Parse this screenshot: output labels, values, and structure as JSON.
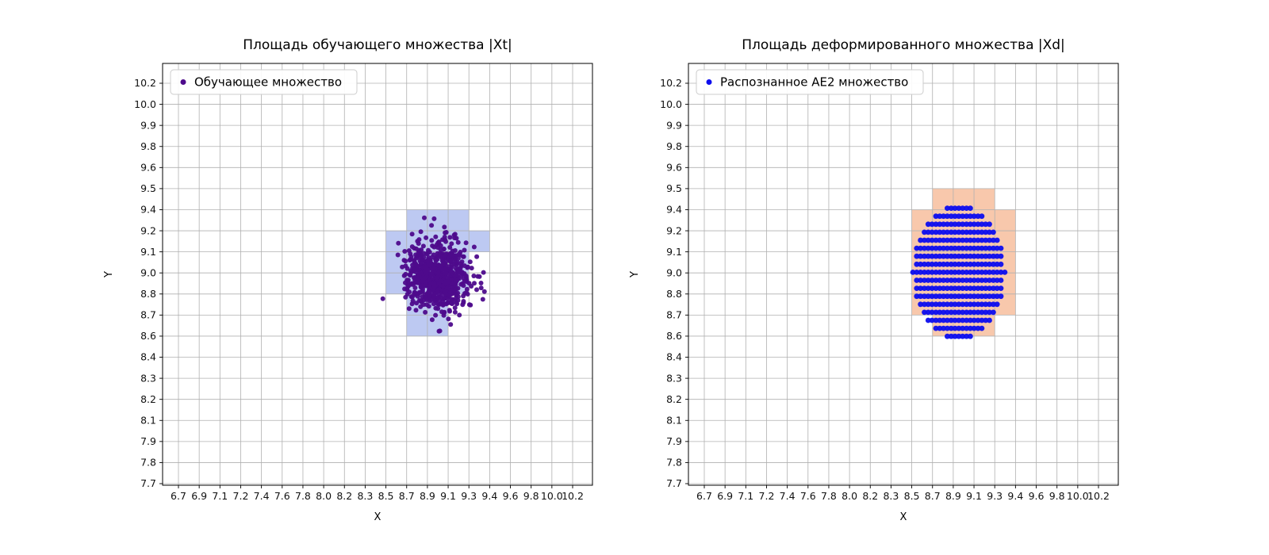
{
  "figure": {
    "background": "#ffffff"
  },
  "chart_data": [
    {
      "type": "scatter",
      "title": "Площадь обучающего множества |Xt|",
      "xlabel": "X",
      "ylabel": "Y",
      "grid": true,
      "legend_position": "upper left",
      "grid_color": "#b0b0b0",
      "axis_color": "#000000",
      "x_ticks": [
        "6.7",
        "6.9",
        "7.1",
        "7.2",
        "7.4",
        "7.6",
        "7.8",
        "8.0",
        "8.2",
        "8.3",
        "8.5",
        "8.7",
        "8.9",
        "9.1",
        "9.3",
        "9.4",
        "9.6",
        "9.8",
        "10.0",
        "10.2"
      ],
      "y_ticks": [
        "7.7",
        "7.8",
        "7.9",
        "8.1",
        "8.2",
        "8.3",
        "8.4",
        "8.6",
        "8.7",
        "8.8",
        "9.0",
        "9.1",
        "9.2",
        "9.4",
        "9.5",
        "9.6",
        "9.8",
        "9.9",
        "10.0",
        "10.2"
      ],
      "xlim": [
        6.7,
        10.2
      ],
      "ylim": [
        7.7,
        10.2
      ],
      "series": [
        {
          "name": "Обучающее множество",
          "color": "#4e0b8c",
          "marker": "circle",
          "marker_radius_px": 3,
          "points_spec": {
            "kind": "gaussian_cluster",
            "center": [
              9.0,
              9.0
            ],
            "std": [
              0.135,
              0.11
            ],
            "count": 700,
            "seed": 7
          }
        }
      ],
      "highlighted_cells": {
        "color": "#bdc9f2",
        "rects": [
          [
            8.7,
            9.3,
            9.2,
            9.4
          ],
          [
            8.5,
            9.3,
            8.8,
            9.2
          ],
          [
            9.3,
            9.4,
            9.1,
            9.2
          ],
          [
            8.7,
            9.1,
            8.6,
            8.8
          ]
        ]
      }
    },
    {
      "type": "scatter",
      "title": "Площадь деформированного множества |Xd|",
      "xlabel": "X",
      "ylabel": "Y",
      "grid": true,
      "legend_position": "upper left",
      "grid_color": "#b0b0b0",
      "axis_color": "#000000",
      "x_ticks": [
        "6.7",
        "6.9",
        "7.1",
        "7.2",
        "7.4",
        "7.6",
        "7.8",
        "8.0",
        "8.2",
        "8.3",
        "8.5",
        "8.7",
        "8.9",
        "9.1",
        "9.3",
        "9.4",
        "9.6",
        "9.8",
        "10.0",
        "10.2"
      ],
      "y_ticks": [
        "7.7",
        "7.8",
        "7.9",
        "8.1",
        "8.2",
        "8.3",
        "8.4",
        "8.6",
        "8.7",
        "8.8",
        "9.0",
        "9.1",
        "9.2",
        "9.4",
        "9.5",
        "9.6",
        "9.8",
        "9.9",
        "10.0",
        "10.2"
      ],
      "xlim": [
        6.7,
        10.2
      ],
      "ylim": [
        7.7,
        10.2
      ],
      "series": [
        {
          "name": "Распознанное АЕ2 множество",
          "color": "#0d0dee",
          "marker": "circle",
          "marker_radius_px": 3.4,
          "points_spec": {
            "kind": "lattice_ellipse",
            "center": [
              8.96,
              9.02
            ],
            "rx": 0.41,
            "ry": 0.42,
            "dx": 0.034,
            "dy": 0.05
          }
        }
      ],
      "highlighted_cells": {
        "color": "#f8c8ac",
        "rects": [
          [
            8.5,
            9.4,
            8.7,
            9.4
          ],
          [
            8.7,
            9.3,
            9.4,
            9.5
          ],
          [
            8.7,
            9.3,
            8.6,
            8.7
          ]
        ]
      }
    }
  ]
}
